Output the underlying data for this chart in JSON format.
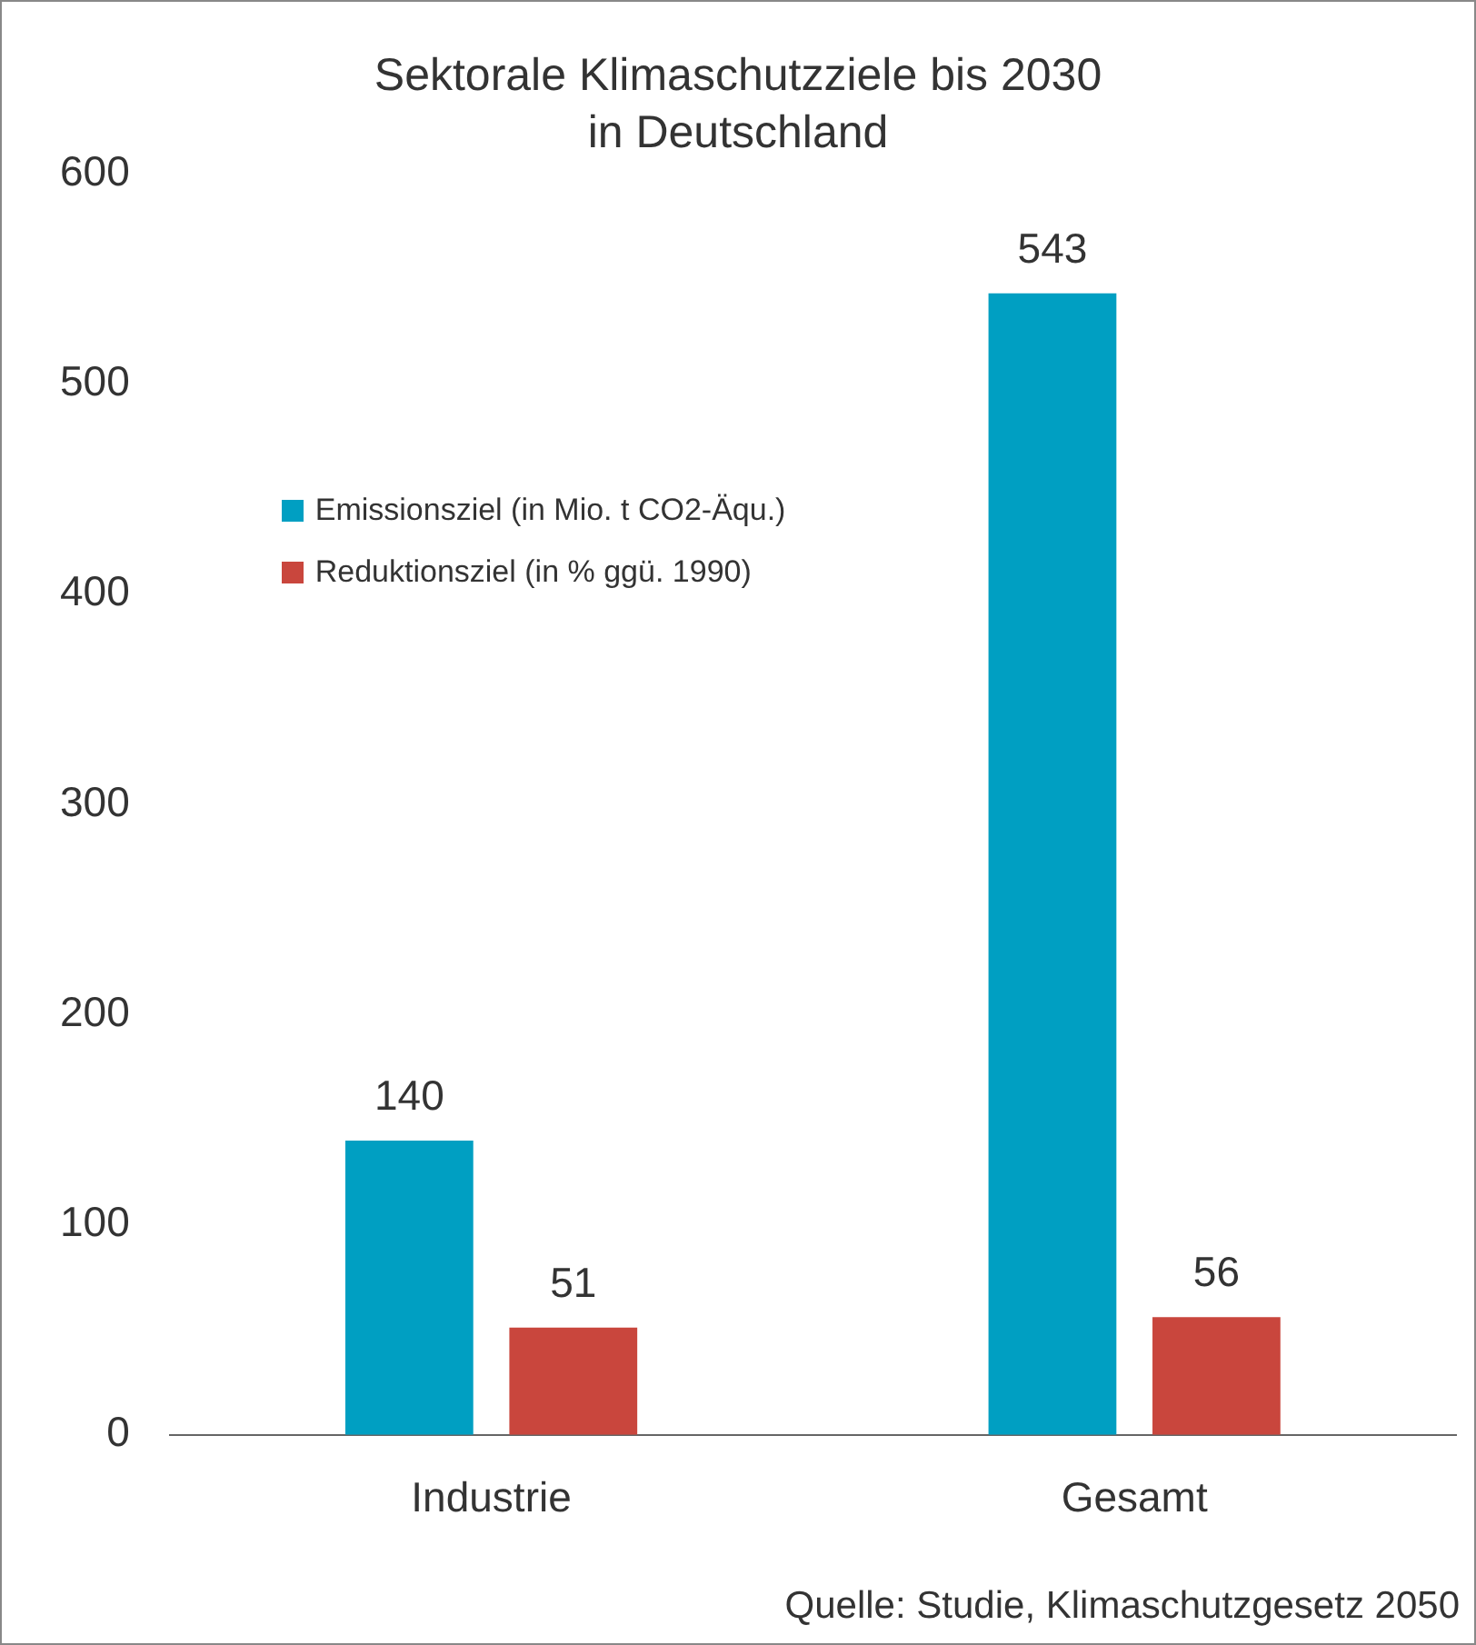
{
  "chart_data": {
    "type": "bar",
    "title": "Sektorale Klimaschutzziele bis 2030\nin Deutschland",
    "categories": [
      "Industrie",
      "Gesamt"
    ],
    "series": [
      {
        "name": "Emissionsziel (in Mio. t CO2-Äqu.)",
        "color": "#009fc2",
        "values": [
          140,
          543
        ]
      },
      {
        "name": "Reduktionsziel (in % ggü. 1990)",
        "color": "#c9463d",
        "values": [
          51,
          56
        ]
      }
    ],
    "ylim": [
      0,
      600
    ],
    "yticks": [
      0,
      100,
      200,
      300,
      400,
      500,
      600
    ],
    "grid": false,
    "legend": "left",
    "data_labels": true,
    "annotations": [
      "Quelle: Studie, Klimaschutzgesetz 2050"
    ]
  }
}
